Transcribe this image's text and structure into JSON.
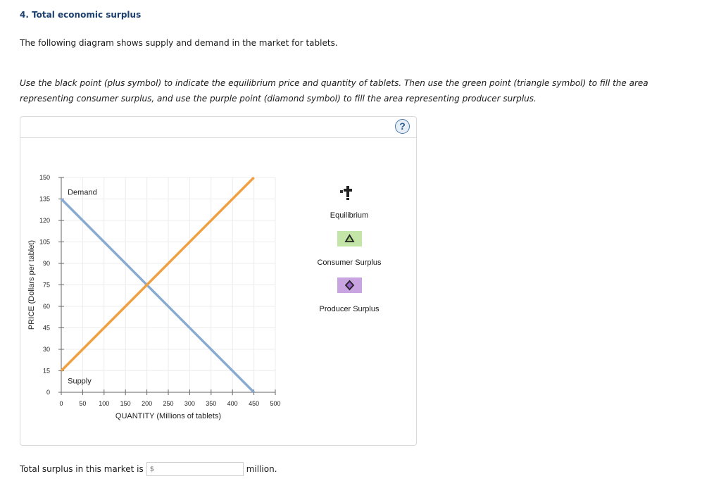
{
  "question": {
    "title": "4. Total economic surplus",
    "intro": "The following diagram shows supply and demand in the market for tablets.",
    "instructions": "Use the black point (plus symbol) to indicate the equilibrium price and quantity of tablets. Then use the green point (triangle symbol) to fill the area representing consumer surplus, and use the purple point (diamond symbol) to fill the area representing producer surplus."
  },
  "panel": {
    "help_icon": "?"
  },
  "legend": {
    "items": [
      {
        "label": "Equilibrium",
        "symbol": "plus",
        "color": "#222222"
      },
      {
        "label": "Consumer Surplus",
        "symbol": "triangle",
        "color": "#c3e5a8"
      },
      {
        "label": "Producer Surplus",
        "symbol": "diamond",
        "color": "#c8a5e0"
      }
    ]
  },
  "answer": {
    "prefix": "Total surplus in this market is",
    "placeholder": "$",
    "value": "",
    "suffix": "million."
  },
  "chart_data": {
    "type": "line",
    "title": "",
    "xlabel": "QUANTITY (Millions of tablets)",
    "ylabel": "PRICE (Dollars per tablet)",
    "xlim": [
      0,
      500
    ],
    "ylim": [
      0,
      150
    ],
    "xticks": [
      0,
      50,
      100,
      150,
      200,
      250,
      300,
      350,
      400,
      450,
      500
    ],
    "yticks": [
      0,
      15,
      30,
      45,
      60,
      75,
      90,
      105,
      120,
      135,
      150
    ],
    "grid": true,
    "series": [
      {
        "name": "Demand",
        "color": "#8aabd1",
        "points": [
          [
            0,
            135
          ],
          [
            450,
            0
          ]
        ]
      },
      {
        "name": "Supply",
        "color": "#f0a040",
        "points": [
          [
            0,
            15
          ],
          [
            450,
            150
          ]
        ]
      }
    ],
    "annotations": [
      {
        "text": "Demand",
        "x": 15,
        "y": 140
      },
      {
        "text": "Supply",
        "x": 15,
        "y": 8
      }
    ]
  }
}
